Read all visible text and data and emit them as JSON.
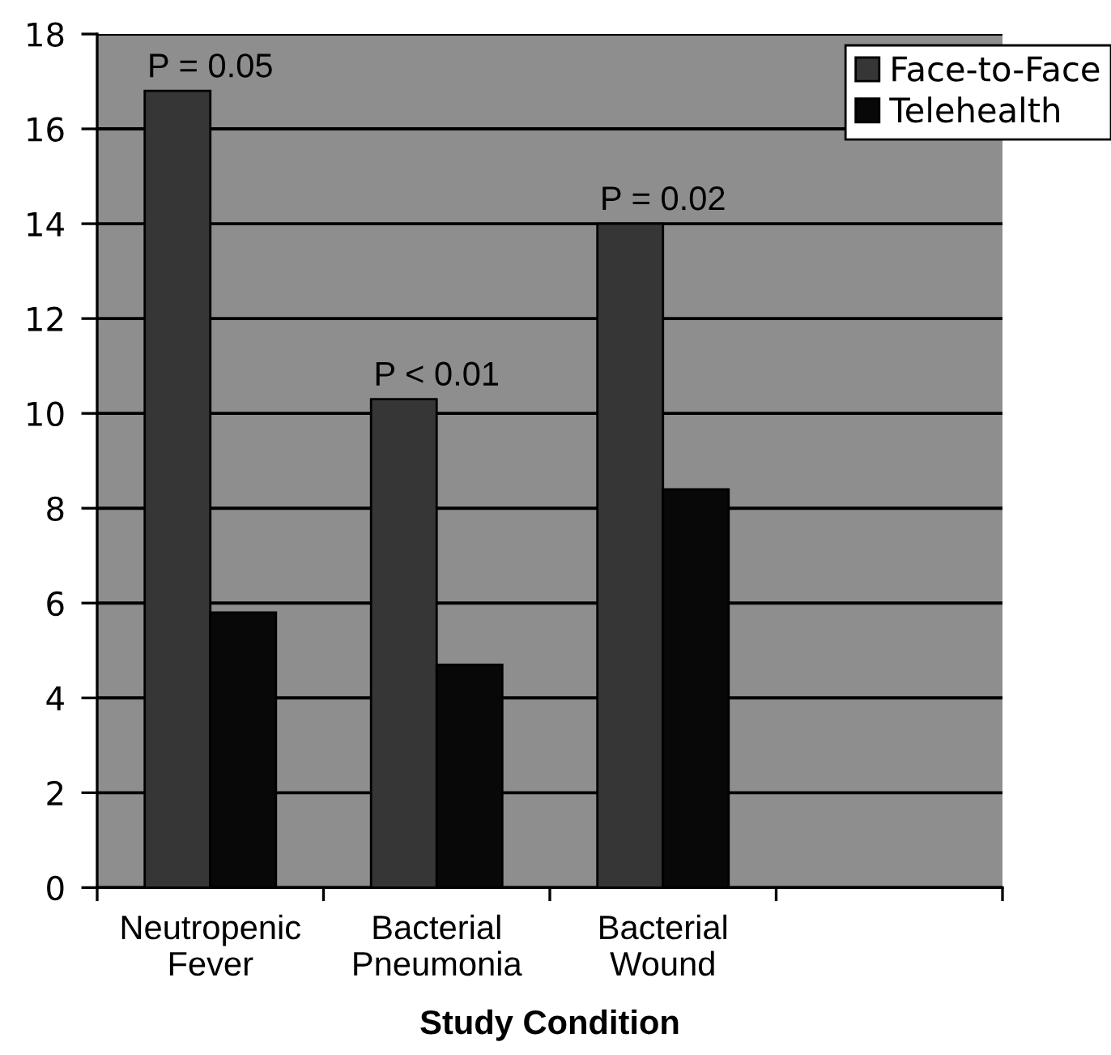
{
  "chart_data": {
    "type": "bar",
    "xlabel": "Study Condition",
    "categories": [
      "Neutropenic\nFever",
      "Bacterial\nPneumonia",
      "Bacterial\nWound",
      null
    ],
    "series": [
      {
        "name": "Face-to-Face",
        "color": "#363636",
        "values": [
          16.8,
          10.3,
          14.0,
          null
        ]
      },
      {
        "name": "Telehealth",
        "color": "#080808",
        "values": [
          5.8,
          4.7,
          8.4,
          null
        ]
      }
    ],
    "ylim": [
      0,
      18
    ],
    "yticks": [
      0,
      2,
      4,
      6,
      8,
      10,
      12,
      14,
      16,
      18
    ],
    "grid": "y",
    "legend": "top right",
    "annotations": [
      {
        "text": "P = 0.05",
        "x": "Neutropenic\nFever",
        "y": 16.8
      },
      {
        "text": "P < 0.01",
        "x": "Bacterial\nPneumonia",
        "y": 10.3
      },
      {
        "text": "P = 0.02",
        "x": "Bacterial\nWound",
        "y": 14.0
      }
    ]
  }
}
